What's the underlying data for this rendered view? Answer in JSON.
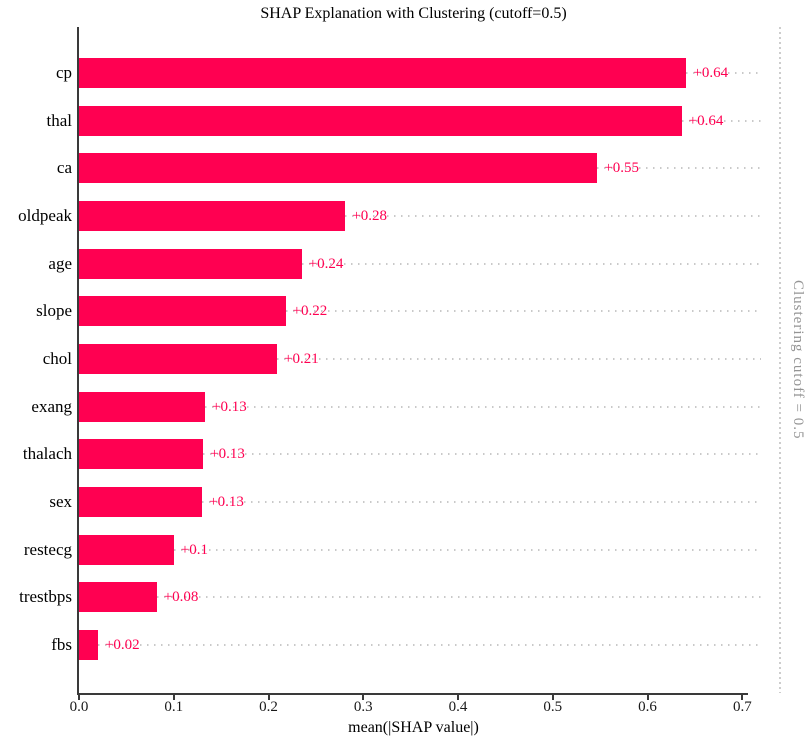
{
  "chart_data": {
    "type": "bar",
    "orientation": "horizontal",
    "title": "SHAP Explanation with Clustering (cutoff=0.5)",
    "xlabel": "mean(|SHAP value|)",
    "ylabel": "",
    "categories": [
      "cp",
      "thal",
      "ca",
      "oldpeak",
      "age",
      "slope",
      "chol",
      "exang",
      "thalach",
      "sex",
      "restecg",
      "trestbps",
      "fbs"
    ],
    "values": [
      0.641,
      0.636,
      0.547,
      0.281,
      0.235,
      0.218,
      0.209,
      0.133,
      0.131,
      0.13,
      0.1,
      0.082,
      0.02
    ],
    "value_labels": [
      "+0.64",
      "+0.64",
      "+0.55",
      "+0.28",
      "+0.24",
      "+0.22",
      "+0.21",
      "+0.13",
      "+0.13",
      "+0.13",
      "+0.1",
      "+0.08",
      "+0.02"
    ],
    "x_ticks": [
      "0.0",
      "0.1",
      "0.2",
      "0.3",
      "0.4",
      "0.5",
      "0.6",
      "0.7"
    ],
    "xlim": [
      0,
      0.706
    ],
    "grid": "dotted horizontal guides per row, off otherwise",
    "legend": "none",
    "annotation": {
      "text": "Clustering cutoff = 0.5",
      "position": "right-vertical",
      "color": "#949494"
    },
    "colors": {
      "bar": "#ff0051",
      "value_label": "#ff0051",
      "guide_dots": "#c9c9c9",
      "cutoff_dots": "#cdcdcd",
      "spine": "#3a3a3a",
      "text": "#000000"
    }
  }
}
